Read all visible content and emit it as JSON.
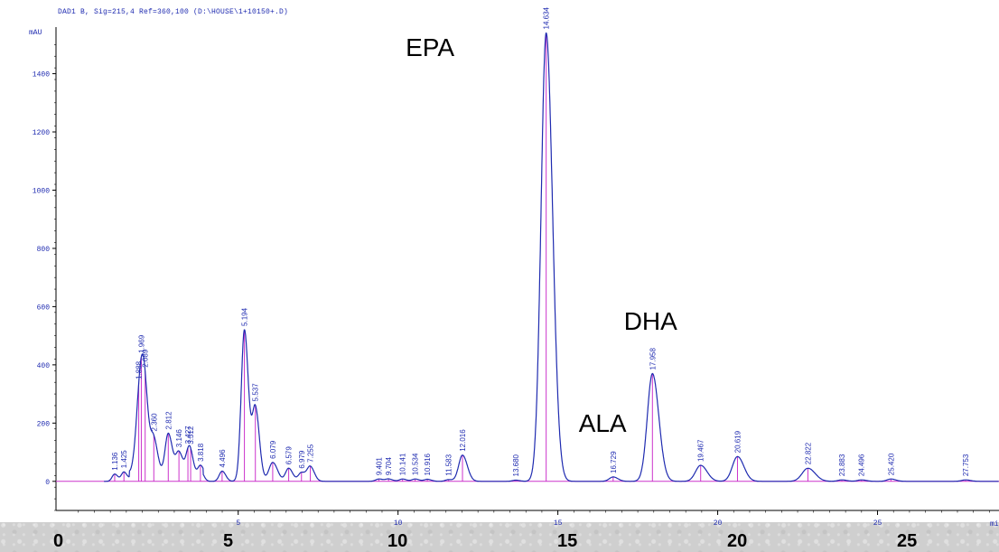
{
  "header": {
    "signal": "DAD1 B, Sig=215,4 Ref=360,100 (D:\\HOUSE\\1+10150+.D)"
  },
  "chart_data": {
    "type": "line",
    "y_unit": "mAU",
    "x_unit": "mi",
    "xlim": [
      -0.7,
      28.8
    ],
    "ylim": [
      -100,
      1560
    ],
    "y_ticks": [
      0,
      200,
      400,
      600,
      800,
      1000,
      1200,
      1400
    ],
    "x_ticks": [
      5,
      10,
      15,
      20,
      25
    ],
    "outer_x_labels": [
      "0",
      "5",
      "10",
      "15",
      "20",
      "25"
    ],
    "peaks": [
      {
        "rt": 1.136,
        "label": "1.136",
        "height": 25,
        "width": 0.08
      },
      {
        "rt": 1.425,
        "label": "1.425",
        "height": 32,
        "width": 0.08
      },
      {
        "rt": 1.888,
        "label": "1.888",
        "height": 165,
        "width": 0.12
      },
      {
        "rt": 1.969,
        "label": "1.969",
        "height": 180,
        "width": 0.1
      },
      {
        "rt": 2.089,
        "label": "2.089",
        "height": 175,
        "width": 0.1
      },
      {
        "rt": 2.36,
        "label": "2.360",
        "height": 120,
        "width": 0.1
      },
      {
        "rt": 2.812,
        "label": "2.812",
        "height": 145,
        "width": 0.1
      },
      {
        "rt": 3.146,
        "label": "3.146",
        "height": 80,
        "width": 0.1
      },
      {
        "rt": 3.427,
        "label": "3.427",
        "height": 60,
        "width": 0.08
      },
      {
        "rt": 3.512,
        "label": "3.512",
        "height": 52,
        "width": 0.08
      },
      {
        "rt": 3.818,
        "label": "3.818",
        "height": 35,
        "width": 0.08
      },
      {
        "rt": 4.496,
        "label": "4.496",
        "height": 35,
        "width": 0.09
      },
      {
        "rt": 5.194,
        "label": "5.194",
        "height": 520,
        "width": 0.1
      },
      {
        "rt": 5.537,
        "label": "5.537",
        "height": 250,
        "width": 0.1
      },
      {
        "rt": 6.079,
        "label": "6.079",
        "height": 65,
        "width": 0.12
      },
      {
        "rt": 6.579,
        "label": "6.579",
        "height": 45,
        "width": 0.1
      },
      {
        "rt": 6.979,
        "label": "6.979",
        "height": 30,
        "width": 0.1
      },
      {
        "rt": 7.255,
        "label": "7.255",
        "height": 50,
        "width": 0.1
      },
      {
        "rt": 9.401,
        "label": "9.401",
        "height": 8,
        "width": 0.1
      },
      {
        "rt": 9.704,
        "label": "9.704",
        "height": 8,
        "width": 0.1
      },
      {
        "rt": 10.141,
        "label": "10.141",
        "height": 8,
        "width": 0.1
      },
      {
        "rt": 10.534,
        "label": "10.534",
        "height": 8,
        "width": 0.1
      },
      {
        "rt": 10.916,
        "label": "10.916",
        "height": 7,
        "width": 0.1
      },
      {
        "rt": 11.583,
        "label": "11.583",
        "height": 6,
        "width": 0.1
      },
      {
        "rt": 12.016,
        "label": "12.016",
        "height": 90,
        "width": 0.12
      },
      {
        "rt": 13.68,
        "label": "13.680",
        "height": 4,
        "width": 0.1
      },
      {
        "rt": 14.634,
        "label": "14.634",
        "height": 1540,
        "width": 0.16
      },
      {
        "rt": 16.729,
        "label": "16.729",
        "height": 15,
        "width": 0.12
      },
      {
        "rt": 17.958,
        "label": "17.958",
        "height": 370,
        "width": 0.16
      },
      {
        "rt": 19.467,
        "label": "19.467",
        "height": 55,
        "width": 0.16
      },
      {
        "rt": 20.619,
        "label": "20.619",
        "height": 85,
        "width": 0.16
      },
      {
        "rt": 22.822,
        "label": "22.822",
        "height": 45,
        "width": 0.18
      },
      {
        "rt": 23.883,
        "label": "23.883",
        "height": 5,
        "width": 0.12
      },
      {
        "rt": 24.496,
        "label": "24.496",
        "height": 5,
        "width": 0.12
      },
      {
        "rt": 25.42,
        "label": "25.420",
        "height": 8,
        "width": 0.12
      },
      {
        "rt": 27.753,
        "label": "27.753",
        "height": 5,
        "width": 0.12
      }
    ],
    "annotations": [
      {
        "text": "EPA",
        "rt": 14.63
      },
      {
        "text": "DHA",
        "rt": 17.96
      },
      {
        "text": "ALA",
        "rt": 16.73
      }
    ],
    "colors": {
      "trace": "#1f2bb0",
      "baseline": "#cc33cc",
      "axis": "#000000",
      "labels": "#1f2bb0"
    }
  }
}
